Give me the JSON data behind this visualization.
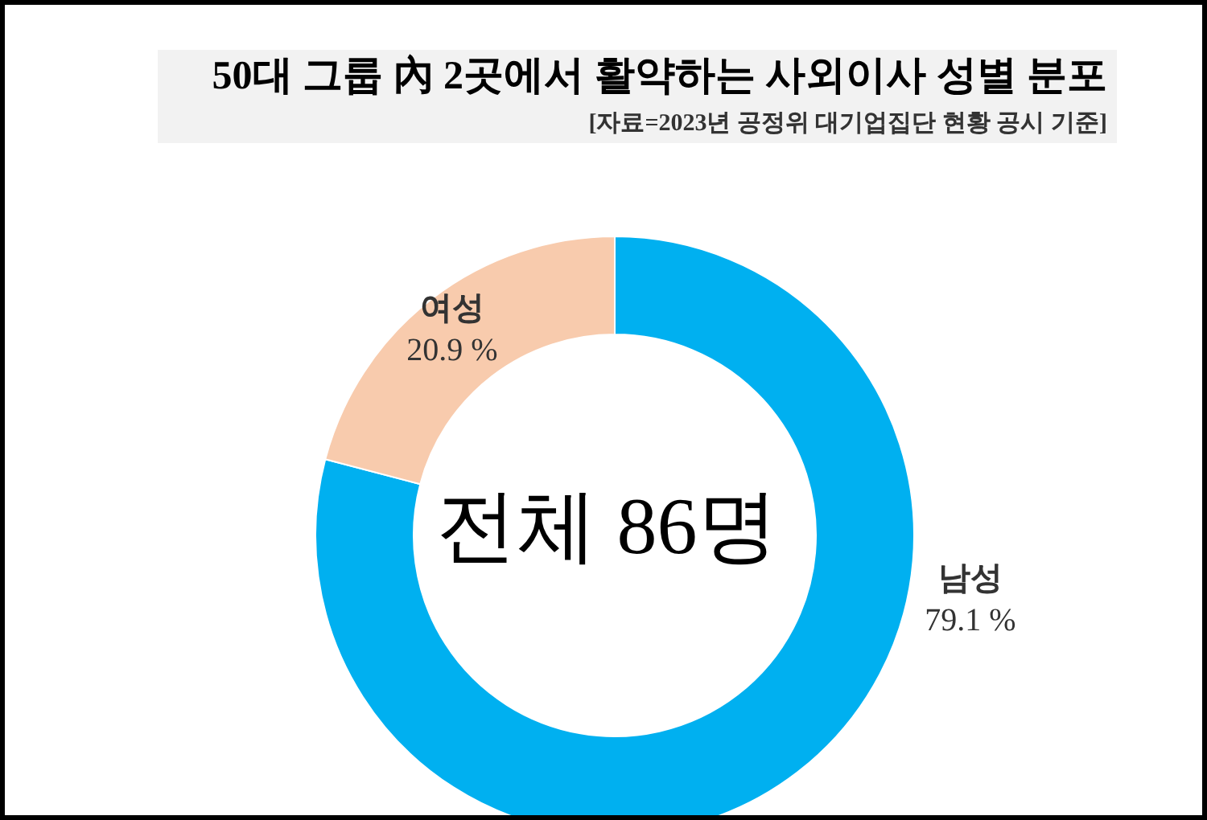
{
  "chart_data": {
    "type": "donut",
    "title": "50대 그룹 內 2곳에서 활약하는 사외이사 성별 분포",
    "subtitle": "[자료=2023년 공정위 대기업집단 현황 공시 기준]",
    "categories": [
      "남성",
      "여성"
    ],
    "values": [
      79.1,
      20.9
    ],
    "colors": [
      "#00b0f0",
      "#f8cbad"
    ],
    "value_labels": [
      "79.1 %",
      "20.9 %"
    ],
    "annotations": [
      "전체 86명"
    ],
    "legend": false
  }
}
